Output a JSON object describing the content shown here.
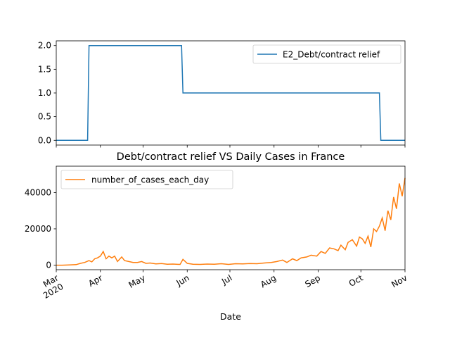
{
  "chart_data": [
    {
      "type": "line",
      "title": "",
      "xlabel": "",
      "ylabel": "",
      "legend": "top-right",
      "grid": false,
      "x_range": [
        "2020-03-01",
        "2020-11-01"
      ],
      "ylim": [
        -0.1,
        2.1
      ],
      "yticks": [
        "0.0",
        "0.5",
        "1.0",
        "1.5",
        "2.0"
      ],
      "series": [
        {
          "name": "E2_Debt/contract relief",
          "color": "#1f77b4",
          "step": true,
          "x": [
            "2020-03-01",
            "2020-03-24",
            "2020-05-29",
            "2020-10-15",
            "2020-11-01"
          ],
          "values": [
            0,
            2,
            1,
            0,
            0
          ]
        }
      ]
    },
    {
      "type": "line",
      "title": "Debt/contract relief VS Daily Cases in France",
      "xlabel": "Date",
      "ylabel": "",
      "legend": "top-left",
      "grid": false,
      "x_range": [
        "2020-03-01",
        "2020-11-01"
      ],
      "ylim": [
        -2500,
        54500
      ],
      "yticks": [
        "0",
        "20000",
        "40000"
      ],
      "xticks": [
        "Mar\n2020",
        "Apr",
        "May",
        "Jun",
        "Jul",
        "Aug",
        "Sep",
        "Oct",
        "Nov"
      ],
      "series": [
        {
          "name": "number_of_cases_each_day",
          "color": "#ff7f0e",
          "x": [
            "2020-03-01",
            "2020-03-05",
            "2020-03-10",
            "2020-03-15",
            "2020-03-18",
            "2020-03-21",
            "2020-03-24",
            "2020-03-26",
            "2020-03-28",
            "2020-03-30",
            "2020-04-01",
            "2020-04-03",
            "2020-04-05",
            "2020-04-07",
            "2020-04-09",
            "2020-04-11",
            "2020-04-13",
            "2020-04-16",
            "2020-04-18",
            "2020-04-21",
            "2020-04-24",
            "2020-04-27",
            "2020-04-30",
            "2020-05-03",
            "2020-05-06",
            "2020-05-10",
            "2020-05-14",
            "2020-05-18",
            "2020-05-22",
            "2020-05-27",
            "2020-05-29",
            "2020-06-01",
            "2020-06-05",
            "2020-06-10",
            "2020-06-15",
            "2020-06-20",
            "2020-06-25",
            "2020-06-30",
            "2020-07-05",
            "2020-07-10",
            "2020-07-15",
            "2020-07-20",
            "2020-07-25",
            "2020-07-30",
            "2020-08-03",
            "2020-08-07",
            "2020-08-10",
            "2020-08-14",
            "2020-08-17",
            "2020-08-20",
            "2020-08-24",
            "2020-08-27",
            "2020-08-31",
            "2020-09-03",
            "2020-09-06",
            "2020-09-09",
            "2020-09-12",
            "2020-09-15",
            "2020-09-17",
            "2020-09-20",
            "2020-09-22",
            "2020-09-25",
            "2020-09-28",
            "2020-09-30",
            "2020-10-02",
            "2020-10-04",
            "2020-10-06",
            "2020-10-08",
            "2020-10-10",
            "2020-10-12",
            "2020-10-14",
            "2020-10-16",
            "2020-10-18",
            "2020-10-20",
            "2020-10-22",
            "2020-10-24",
            "2020-10-26",
            "2020-10-28",
            "2020-10-30",
            "2020-11-01"
          ],
          "values": [
            0,
            0,
            100,
            300,
            1000,
            1500,
            2500,
            1800,
            3500,
            4000,
            5000,
            7500,
            3500,
            5000,
            4000,
            5000,
            2000,
            4500,
            2500,
            2000,
            1500,
            1500,
            2000,
            1000,
            1200,
            700,
            900,
            500,
            600,
            400,
            3200,
            1000,
            500,
            400,
            600,
            500,
            800,
            400,
            800,
            700,
            900,
            800,
            1200,
            1500,
            2000,
            2800,
            1500,
            3500,
            2500,
            4000,
            4500,
            5500,
            5000,
            7500,
            6500,
            9500,
            9000,
            8000,
            11000,
            8500,
            12500,
            14000,
            10500,
            15500,
            14500,
            12000,
            16000,
            10000,
            20000,
            18500,
            21500,
            26000,
            19000,
            30000,
            25000,
            37500,
            31000,
            45000,
            38000,
            48000
          ]
        }
      ]
    }
  ]
}
